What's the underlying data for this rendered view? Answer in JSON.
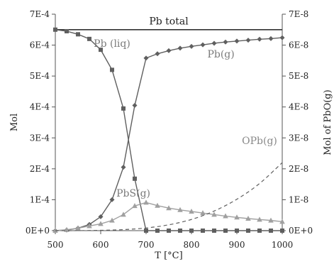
{
  "chart_data": {
    "type": "line",
    "title": "",
    "xlabel": "T [°C]",
    "ylabel_left": "Mol",
    "ylabel_right": "Mol of PbO(g)",
    "xlim": [
      500,
      1000
    ],
    "ylim_left": [
      0,
      0.0007
    ],
    "ylim_right": [
      0,
      7e-08
    ],
    "x_ticks": [
      500,
      600,
      700,
      800,
      900,
      1000
    ],
    "x_tick_labels": [
      "500",
      "600",
      "700",
      "800",
      "900",
      "1000"
    ],
    "y_left_ticks": [
      0,
      0.0001,
      0.0002,
      0.0003,
      0.0004,
      0.0005,
      0.0006,
      0.0007
    ],
    "y_left_tick_labels": [
      "0E+0",
      "1E-4",
      "2E-4",
      "3E-4",
      "4E-4",
      "5E-4",
      "6E-4",
      "7E-4"
    ],
    "y_right_ticks": [
      0,
      1e-08,
      2e-08,
      3e-08,
      4e-08,
      5e-08,
      6e-08,
      7e-08
    ],
    "y_right_tick_labels": [
      "0E+0",
      "1E-8",
      "2E-8",
      "3E-8",
      "4E-8",
      "5E-8",
      "6E-8",
      "7E-8"
    ],
    "grid": false,
    "colors": {
      "dark": "#5f5f5f",
      "light": "#a0a0a0",
      "total": "#333333"
    },
    "series": [
      {
        "id": "pb_total",
        "name": "Pb total",
        "axis": "left",
        "style": "solid",
        "marker": "none",
        "color": "#333333",
        "x": [
          500,
          1000
        ],
        "y": [
          0.00065,
          0.00065
        ]
      },
      {
        "id": "pb_liq",
        "name": "Pb (liq)",
        "axis": "left",
        "style": "solid",
        "marker": "square",
        "color": "#5f5f5f",
        "x": [
          500,
          525,
          550,
          575,
          600,
          625,
          650,
          675,
          700,
          725,
          750,
          775,
          800,
          825,
          850,
          875,
          900,
          925,
          950,
          975,
          1000
        ],
        "y": [
          0.00065,
          0.000645,
          0.000635,
          0.00062,
          0.000585,
          0.00052,
          0.000395,
          0.000168,
          0,
          0,
          0,
          0,
          0,
          0,
          0,
          0,
          0,
          0,
          0,
          0,
          0
        ]
      },
      {
        "id": "pb_g",
        "name": "Pb(g)",
        "axis": "left",
        "style": "solid",
        "marker": "diamond",
        "color": "#5f5f5f",
        "x": [
          500,
          525,
          550,
          575,
          600,
          625,
          650,
          675,
          700,
          725,
          750,
          775,
          800,
          825,
          850,
          875,
          900,
          925,
          950,
          975,
          1000
        ],
        "y": [
          0,
          2e-06,
          8e-06,
          2e-05,
          4.5e-05,
          0.0001,
          0.000205,
          0.000405,
          0.000558,
          0.000572,
          0.000582,
          0.00059,
          0.000596,
          0.000601,
          0.000606,
          0.00061,
          0.000613,
          0.000616,
          0.000619,
          0.000621,
          0.000624
        ]
      },
      {
        "id": "pbs_g",
        "name": "PbS(g)",
        "axis": "left",
        "style": "solid",
        "marker": "triangle",
        "color": "#a0a0a0",
        "x": [
          500,
          525,
          550,
          575,
          600,
          625,
          650,
          675,
          700,
          725,
          750,
          775,
          800,
          825,
          850,
          875,
          900,
          925,
          950,
          975,
          1000
        ],
        "y": [
          0,
          3e-06,
          8e-06,
          1.5e-05,
          2.2e-05,
          3.3e-05,
          5.2e-05,
          8e-05,
          9.1e-05,
          8.1e-05,
          7.3e-05,
          6.7e-05,
          6.2e-05,
          5.7e-05,
          5.2e-05,
          4.7e-05,
          4.3e-05,
          3.9e-05,
          3.6e-05,
          3.3e-05,
          2.9e-05
        ]
      },
      {
        "id": "opb_g",
        "name": "OPb(g)",
        "axis": "right",
        "style": "dashed",
        "marker": "none",
        "color": "#5f5f5f",
        "x": [
          500,
          550,
          600,
          650,
          700,
          750,
          800,
          850,
          900,
          950,
          1000
        ],
        "y": [
          0,
          0,
          1e-10,
          3e-10,
          8e-10,
          1.8e-09,
          3.5e-09,
          6.2e-09,
          1e-08,
          1.5e-08,
          2.2e-08
        ]
      }
    ],
    "annotations": [
      {
        "id": "pb_total",
        "text": "Pb total",
        "x": 750,
        "y": 0.000667,
        "axis": "left",
        "color": "#222222"
      },
      {
        "id": "pb_liq",
        "text": "Pb (liq)",
        "x": 625,
        "y": 0.000595,
        "axis": "left",
        "color": "#7a7a7a"
      },
      {
        "id": "pb_g",
        "text": "Pb(g)",
        "x": 865,
        "y": 0.00056,
        "axis": "left",
        "color": "#7a7a7a"
      },
      {
        "id": "pbs_g",
        "text": "PbS(g)",
        "x": 672,
        "y": 0.00011,
        "axis": "left",
        "color": "#7a7a7a"
      },
      {
        "id": "opb_g",
        "text": "OPb(g)",
        "x": 950,
        "y": 2.8e-08,
        "axis": "right",
        "color": "#888888"
      }
    ]
  }
}
